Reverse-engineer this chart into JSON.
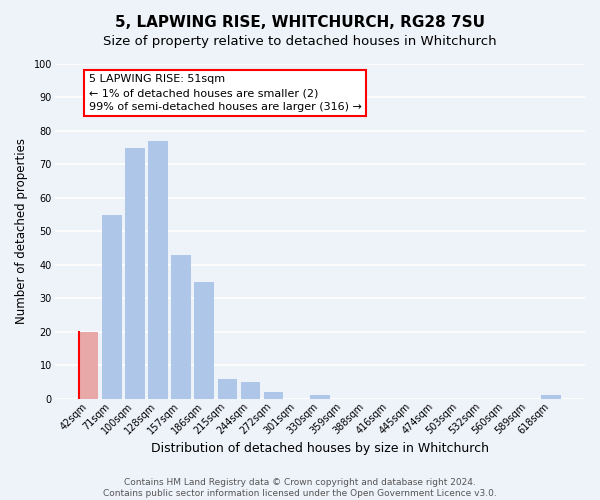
{
  "title": "5, LAPWING RISE, WHITCHURCH, RG28 7SU",
  "subtitle": "Size of property relative to detached houses in Whitchurch",
  "xlabel": "Distribution of detached houses by size in Whitchurch",
  "ylabel": "Number of detached properties",
  "bin_labels": [
    "42sqm",
    "71sqm",
    "100sqm",
    "128sqm",
    "157sqm",
    "186sqm",
    "215sqm",
    "244sqm",
    "272sqm",
    "301sqm",
    "330sqm",
    "359sqm",
    "388sqm",
    "416sqm",
    "445sqm",
    "474sqm",
    "503sqm",
    "532sqm",
    "560sqm",
    "589sqm",
    "618sqm"
  ],
  "bar_heights": [
    20,
    55,
    75,
    77,
    43,
    35,
    6,
    5,
    2,
    0,
    1,
    0,
    0,
    0,
    0,
    0,
    0,
    0,
    0,
    0,
    1
  ],
  "bar_color_normal": "#aec6e8",
  "bar_color_highlight": "#e8a8a8",
  "highlight_bin": 0,
  "annotation_text": "5 LAPWING RISE: 51sqm\n← 1% of detached houses are smaller (2)\n99% of semi-detached houses are larger (316) →",
  "ylim": [
    0,
    100
  ],
  "yticks": [
    0,
    10,
    20,
    30,
    40,
    50,
    60,
    70,
    80,
    90,
    100
  ],
  "footer_line1": "Contains HM Land Registry data © Crown copyright and database right 2024.",
  "footer_line2": "Contains public sector information licensed under the Open Government Licence v3.0.",
  "bg_color": "#eef2f9",
  "grid_color": "#ffffff",
  "title_fontsize": 11,
  "subtitle_fontsize": 9.5,
  "xlabel_fontsize": 9,
  "ylabel_fontsize": 8.5,
  "tick_fontsize": 7,
  "ann_fontsize": 8,
  "footer_fontsize": 6.5
}
